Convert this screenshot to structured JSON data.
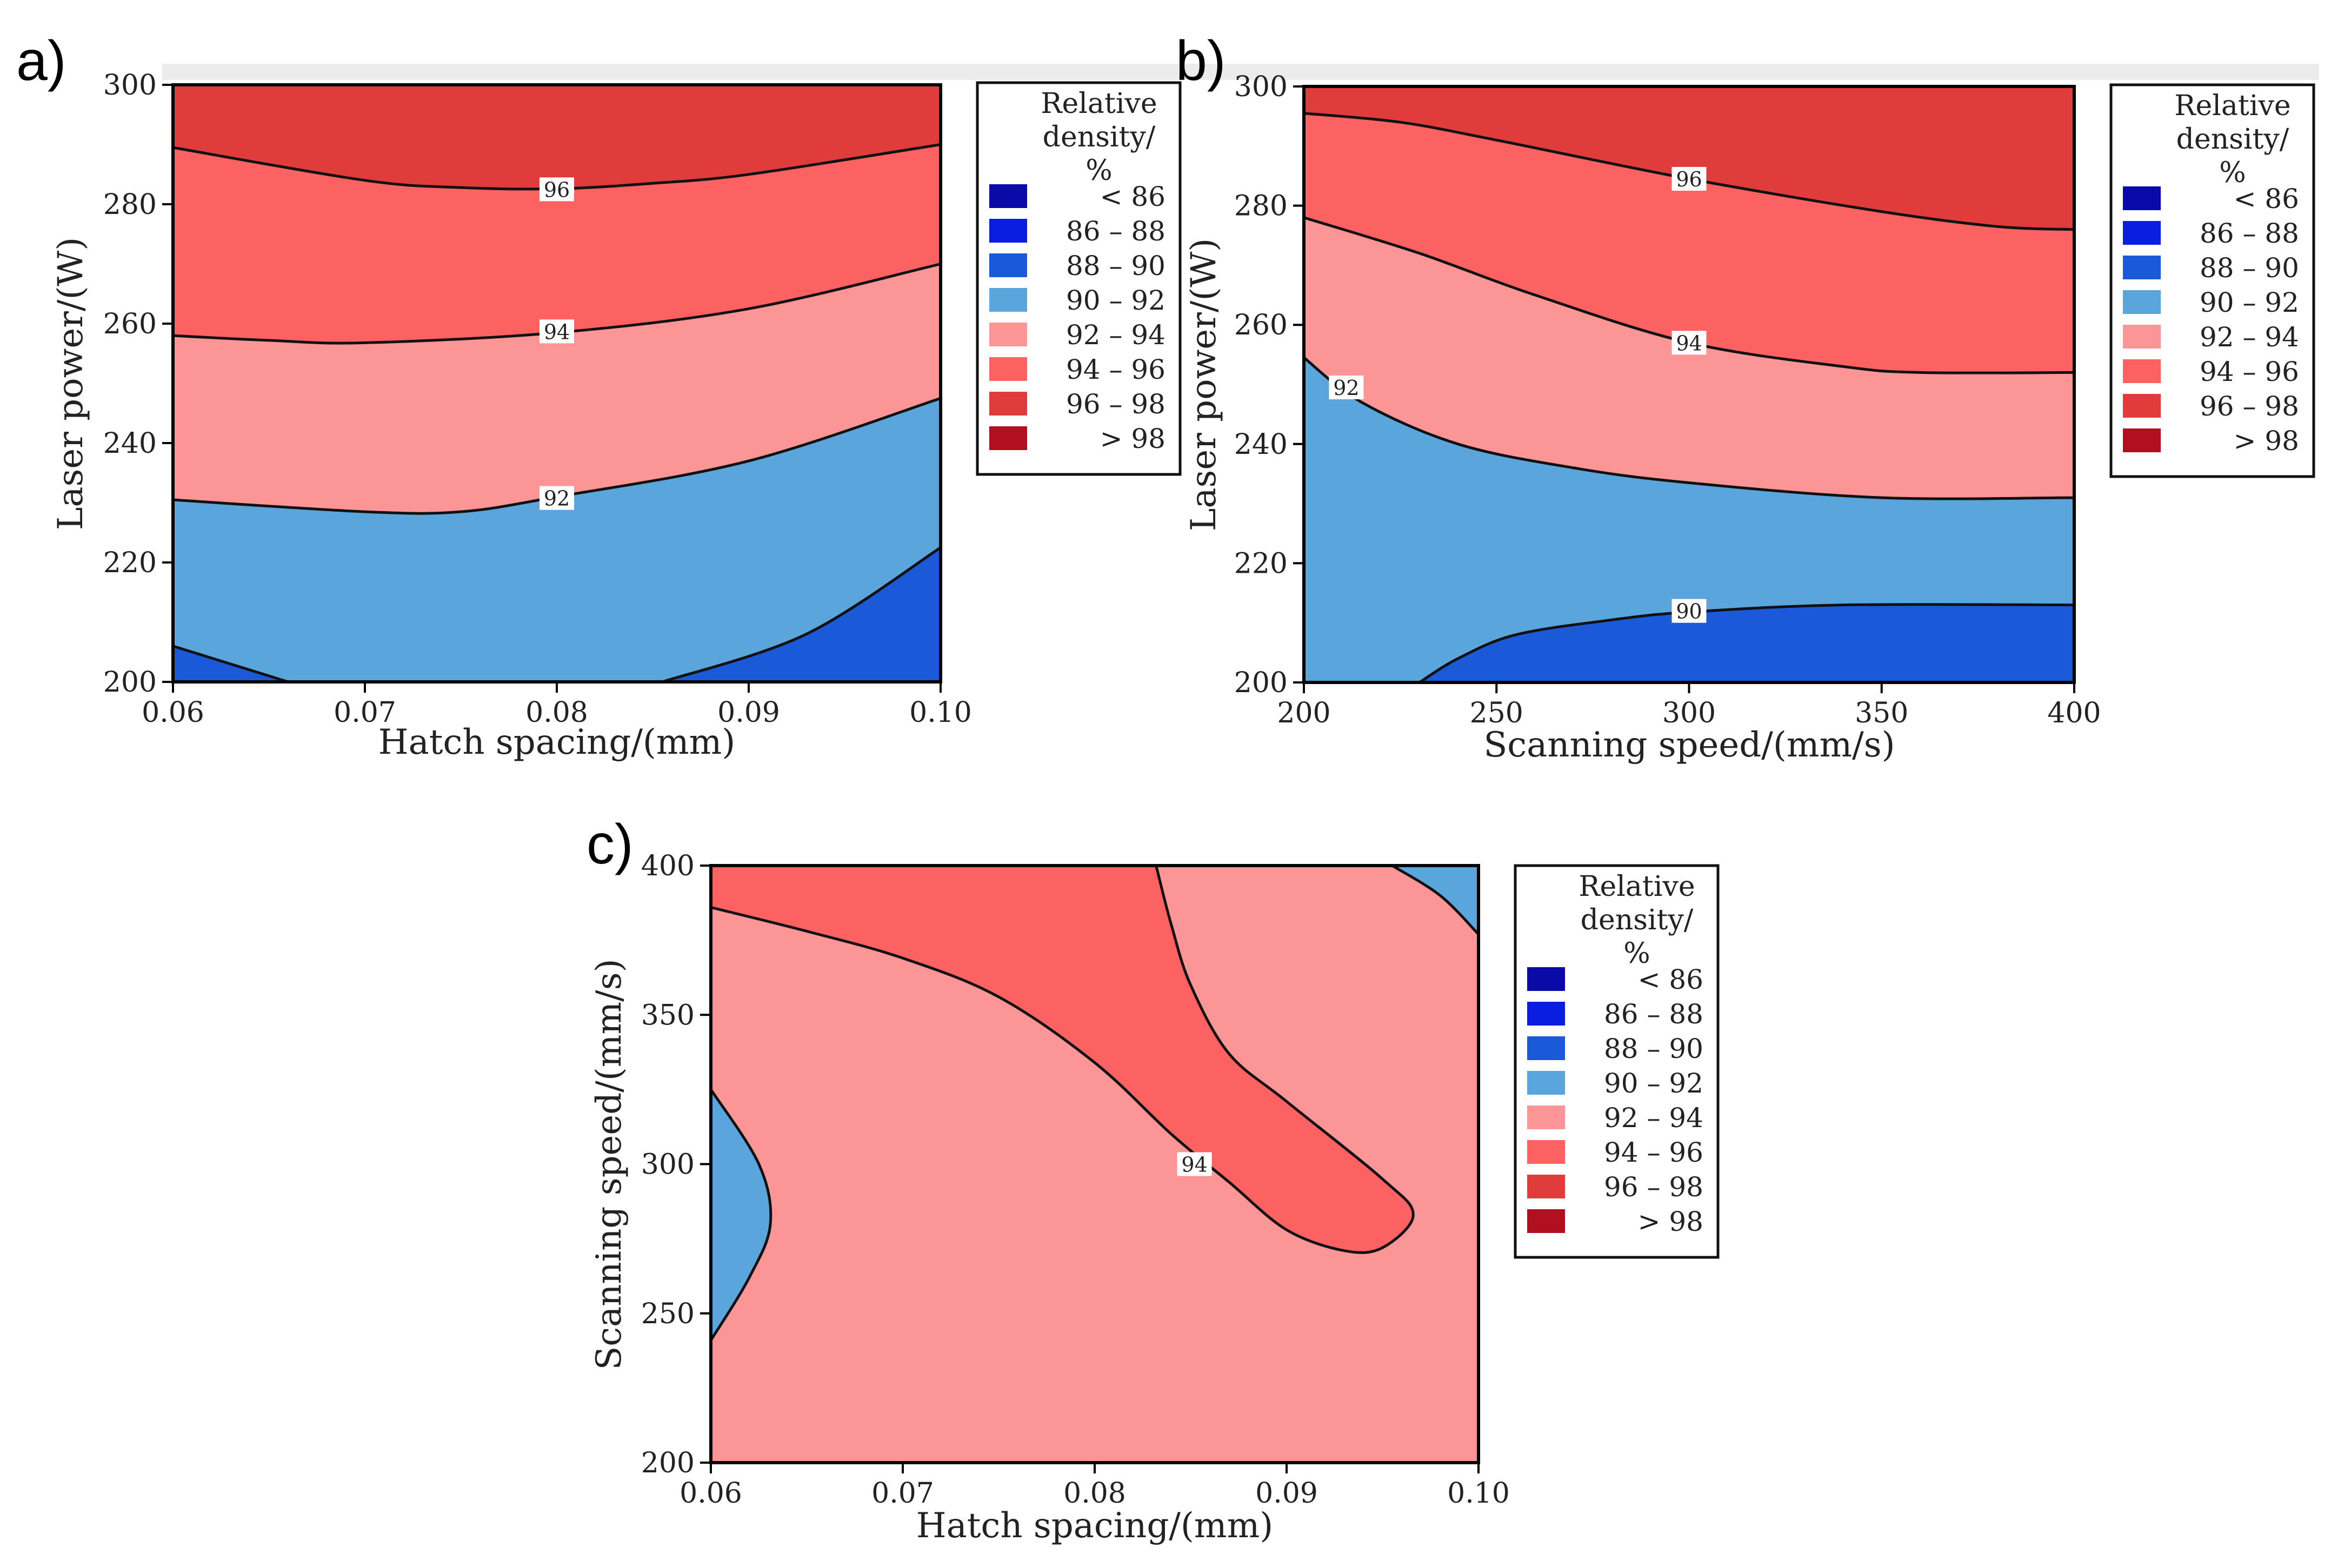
{
  "legend": {
    "title_lines": [
      "Relative",
      "density/",
      "%"
    ],
    "bins": [
      {
        "label": "< 86",
        "color": "#0a0aa8"
      },
      {
        "label": "86 – 88",
        "color": "#0a1ee0"
      },
      {
        "label": "88 – 90",
        "color": "#1a5ad8"
      },
      {
        "label": "90 – 92",
        "color": "#5aa6dc"
      },
      {
        "label": "92 – 94",
        "color": "#fc9696"
      },
      {
        "label": "94 – 96",
        "color": "#fc6262"
      },
      {
        "label": "96 – 98",
        "color": "#e03c3c"
      },
      {
        "label": "> 98",
        "color": "#b01020"
      }
    ]
  },
  "chart_data": [
    {
      "panel": "a)",
      "type": "contour",
      "xlabel": "Hatch spacing/(mm)",
      "ylabel": "Laser power/(W)",
      "xlim": [
        0.06,
        0.1
      ],
      "ylim": [
        200,
        300
      ],
      "xticks": [
        "0.06",
        "0.07",
        "0.08",
        "0.09",
        "0.10"
      ],
      "yticks": [
        "200",
        "220",
        "240",
        "260",
        "280",
        "300"
      ],
      "contours": [
        {
          "level": 96,
          "points": [
            [
              0.06,
              289.5
            ],
            [
              0.07,
              284
            ],
            [
              0.075,
              282.8
            ],
            [
              0.08,
              282.6
            ],
            [
              0.085,
              283.5
            ],
            [
              0.09,
              285
            ],
            [
              0.1,
              290
            ]
          ],
          "label_at": [
            0.08,
            282.5
          ]
        },
        {
          "level": 94,
          "points": [
            [
              0.06,
              258
            ],
            [
              0.065,
              257.2
            ],
            [
              0.07,
              256.8
            ],
            [
              0.08,
              258.5
            ],
            [
              0.09,
              262.5
            ],
            [
              0.1,
              270
            ]
          ],
          "label_at": [
            0.08,
            258.7
          ]
        },
        {
          "level": 92,
          "points": [
            [
              0.06,
              230.5
            ],
            [
              0.07,
              228.5
            ],
            [
              0.075,
              228.5
            ],
            [
              0.08,
              231
            ],
            [
              0.09,
              237
            ],
            [
              0.1,
              247.5
            ]
          ],
          "label_at": [
            0.08,
            230.8
          ]
        },
        {
          "level": 90,
          "points": [
            [
              0.06,
              206
            ],
            [
              0.066,
              200
            ]
          ],
          "label_at": null
        },
        {
          "level": 90,
          "points": [
            [
              0.0855,
              200
            ],
            [
              0.093,
              208
            ],
            [
              0.1,
              222.5
            ]
          ],
          "label_at": null
        }
      ],
      "regions": [
        {
          "range": "96 – 98",
          "bounds": [
            "top",
            96
          ]
        },
        {
          "range": "94 – 96",
          "bounds": [
            96,
            94
          ]
        },
        {
          "range": "92 – 94",
          "bounds": [
            94,
            92
          ]
        },
        {
          "range": "90 – 92",
          "bounds": [
            92,
            "bottom"
          ]
        },
        {
          "range": "88 – 90",
          "bounds": [
            "corner",
            "bottom-left"
          ]
        },
        {
          "range": "88 – 90",
          "bounds": [
            "corner",
            "bottom-right"
          ]
        }
      ]
    },
    {
      "panel": "b)",
      "type": "contour",
      "xlabel": "Scanning speed/(mm/s)",
      "ylabel": "Laser power/(W)",
      "xlim": [
        200,
        400
      ],
      "ylim": [
        200,
        300
      ],
      "xticks": [
        "200",
        "250",
        "300",
        "350",
        "400"
      ],
      "yticks": [
        "200",
        "220",
        "240",
        "260",
        "280",
        "300"
      ],
      "contours": [
        {
          "level": 96,
          "points": [
            [
              200,
              295.5
            ],
            [
              225,
              294
            ],
            [
              250,
              291
            ],
            [
              300,
              284.5
            ],
            [
              350,
              279
            ],
            [
              380,
              276.5
            ],
            [
              400,
              276
            ]
          ],
          "label_at": [
            300,
            284.5
          ]
        },
        {
          "level": 94,
          "points": [
            [
              200,
              278
            ],
            [
              230,
              272
            ],
            [
              260,
              265
            ],
            [
              300,
              257
            ],
            [
              340,
              253
            ],
            [
              360,
              252
            ],
            [
              400,
              252
            ]
          ],
          "label_at": [
            300,
            257
          ]
        },
        {
          "level": 92,
          "points": [
            [
              200,
              254.5
            ],
            [
              215,
              247
            ],
            [
              240,
              240
            ],
            [
              270,
              236
            ],
            [
              300,
              233.5
            ],
            [
              350,
              231
            ],
            [
              400,
              231
            ]
          ],
          "label_at": [
            211,
            249.5
          ]
        },
        {
          "level": 90,
          "points": [
            [
              230,
              200
            ],
            [
              240,
              204
            ],
            [
              255,
              208
            ],
            [
              280,
              210.5
            ],
            [
              300,
              211.8
            ],
            [
              340,
              213
            ],
            [
              400,
              213
            ]
          ],
          "label_at": [
            300,
            212
          ]
        }
      ],
      "regions": [
        {
          "range": "96 – 98",
          "bounds": [
            "top",
            96
          ]
        },
        {
          "range": "94 – 96",
          "bounds": [
            96,
            94
          ]
        },
        {
          "range": "92 – 94",
          "bounds": [
            94,
            92
          ]
        },
        {
          "range": "90 – 92",
          "bounds": [
            92,
            90
          ]
        },
        {
          "range": "88 – 90",
          "bounds": [
            90,
            "bottom"
          ]
        }
      ]
    },
    {
      "panel": "c)",
      "type": "contour",
      "xlabel": "Hatch spacing/(mm)",
      "ylabel": "Scanning speed/(mm/s)",
      "xlim": [
        0.06,
        0.1
      ],
      "ylim": [
        200,
        400
      ],
      "xticks": [
        "0.06",
        "0.07",
        "0.08",
        "0.09",
        "0.10"
      ],
      "yticks": [
        "200",
        "250",
        "300",
        "350",
        "400"
      ],
      "contours": [
        {
          "level": 94,
          "points": [
            [
              0.06,
              386
            ],
            [
              0.065,
              378
            ],
            [
              0.07,
              369
            ],
            [
              0.075,
              356
            ],
            [
              0.08,
              334
            ],
            [
              0.084,
              310
            ],
            [
              0.087,
              294
            ],
            [
              0.09,
              278
            ],
            [
              0.093,
              271
            ],
            [
              0.095,
              272
            ],
            [
              0.0966,
              283
            ],
            [
              0.095,
              295
            ],
            [
              0.09,
              321
            ],
            [
              0.087,
              337
            ],
            [
              0.085,
              360
            ],
            [
              0.084,
              380
            ],
            [
              0.0832,
              400
            ]
          ],
          "label_at": [
            0.0852,
            300
          ]
        },
        {
          "level": 92,
          "points": [
            [
              0.06,
              325
            ],
            [
              0.0625,
              300
            ],
            [
              0.0631,
              280
            ],
            [
              0.062,
              262
            ],
            [
              0.06,
              241
            ]
          ],
          "label_at": null
        },
        {
          "level": 92,
          "points": [
            [
              0.0955,
              400
            ],
            [
              0.098,
              390
            ],
            [
              0.1,
              377
            ]
          ],
          "label_at": null
        }
      ],
      "regions": [
        {
          "range": "92 – 94",
          "bounds": [
            "background"
          ]
        },
        {
          "range": "94 – 96",
          "bounds": [
            "top-middle lobe"
          ]
        },
        {
          "range": "90 – 92",
          "bounds": [
            "left edge"
          ]
        },
        {
          "range": "90 – 92",
          "bounds": [
            "top-right corner"
          ]
        }
      ]
    }
  ]
}
